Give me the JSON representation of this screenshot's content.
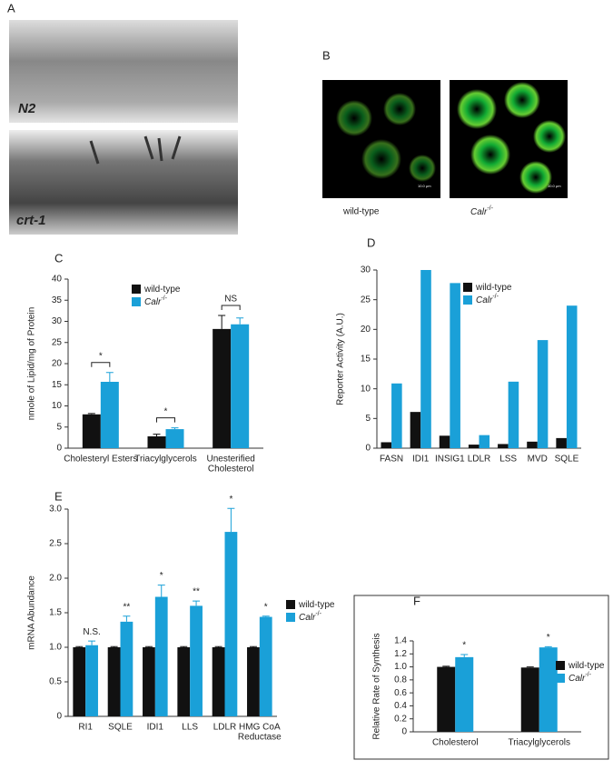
{
  "images": {
    "A": {
      "label": "A",
      "captions": [
        "N2",
        "crt-1"
      ]
    },
    "B": {
      "label": "B",
      "captions": [
        "wild-type",
        "Calr"
      ],
      "caption_sup": "-/-",
      "scale": "10.0 μm"
    }
  },
  "chart_data": [
    {
      "type": "bar",
      "panel_label": "C",
      "ylabel": "nmole of Lipid/mg of Protein",
      "categories": [
        "Cholesteryl Esters",
        "Triacylglycerols",
        [
          "Unesterified",
          "Cholesterol"
        ]
      ],
      "ylim": [
        0,
        40
      ],
      "yticks": [
        0,
        5,
        10,
        15,
        20,
        25,
        30,
        35,
        40
      ],
      "brackets": true,
      "series": [
        {
          "name": "wild-type",
          "color": "#111111",
          "values": [
            8,
            2.8,
            28.2
          ],
          "errors": [
            0.2,
            0.5,
            3.2
          ]
        },
        {
          "name": "Calr",
          "name_sup": "-/-",
          "color": "#1aa0d8",
          "values": [
            15.7,
            4.5,
            29.3
          ],
          "errors": [
            2.2,
            0.3,
            1.5
          ]
        }
      ],
      "annotations": [
        "*",
        "*",
        "NS"
      ]
    },
    {
      "type": "bar",
      "panel_label": "D",
      "ylabel": "Reporter Activity (A.U.)",
      "categories": [
        "FASN",
        "IDI1",
        "INSIG1",
        "LDLR",
        "LSS",
        "MVD",
        "SQLE"
      ],
      "ylim": [
        0,
        30
      ],
      "yticks": [
        0,
        5,
        10,
        15,
        20,
        25,
        30
      ],
      "series": [
        {
          "name": "wild-type",
          "color": "#111111",
          "values": [
            1,
            6.1,
            2.1,
            0.6,
            0.7,
            1.1,
            1.7
          ]
        },
        {
          "name": "Calr",
          "name_sup": "-/-",
          "color": "#1aa0d8",
          "values": [
            10.9,
            30,
            27.8,
            2.2,
            11.2,
            18.2,
            24
          ]
        }
      ]
    },
    {
      "type": "bar",
      "panel_label": "E",
      "ylabel": "mRNA Abundance",
      "categories": [
        "RI1",
        "SQLE",
        "IDI1",
        "LLS",
        "LDLR",
        [
          "HMG CoA",
          "Reductase"
        ]
      ],
      "ylim": [
        0,
        3
      ],
      "yticks": [
        0,
        0.5,
        {
          "value": 1,
          "label": "1.0"
        },
        1.5,
        {
          "value": 2,
          "label": "2.0"
        },
        2.5,
        {
          "value": 3,
          "label": "3.0"
        }
      ],
      "series": [
        {
          "name": "wild-type",
          "color": "#111111",
          "values": [
            1,
            1,
            1,
            1,
            1,
            1
          ],
          "errors": [
            0.01,
            0.01,
            0.01,
            0.01,
            0.01,
            0.01
          ]
        },
        {
          "name": "Calr",
          "name_sup": "-/-",
          "color": "#1aa0d8",
          "values": [
            1.03,
            1.37,
            1.73,
            1.6,
            2.67,
            1.44
          ],
          "errors": [
            0.06,
            0.08,
            0.17,
            0.07,
            0.34,
            0.01
          ]
        }
      ],
      "annotations": [
        "N.S.",
        "**",
        "*",
        "**",
        "*",
        "*"
      ]
    },
    {
      "type": "bar",
      "panel_label": "F",
      "ylabel": "Relative Rate of Synthesis",
      "categories": [
        "Cholesterol",
        "Triacylglycerols"
      ],
      "ylim": [
        0,
        1.4
      ],
      "yticks": [
        0,
        0.2,
        0.4,
        0.6,
        0.8,
        {
          "value": 1,
          "label": "1.0"
        },
        1.2,
        1.4
      ],
      "frame": true,
      "series": [
        {
          "name": "wild-type",
          "color": "#111111",
          "values": [
            1,
            0.99
          ],
          "errors": [
            0.01,
            0.01
          ]
        },
        {
          "name": "Calr",
          "name_sup": "-/-",
          "color": "#1aa0d8",
          "values": [
            1.15,
            1.3
          ],
          "errors": [
            0.04,
            0.01
          ]
        }
      ],
      "annotations": [
        "*",
        "*"
      ]
    }
  ]
}
